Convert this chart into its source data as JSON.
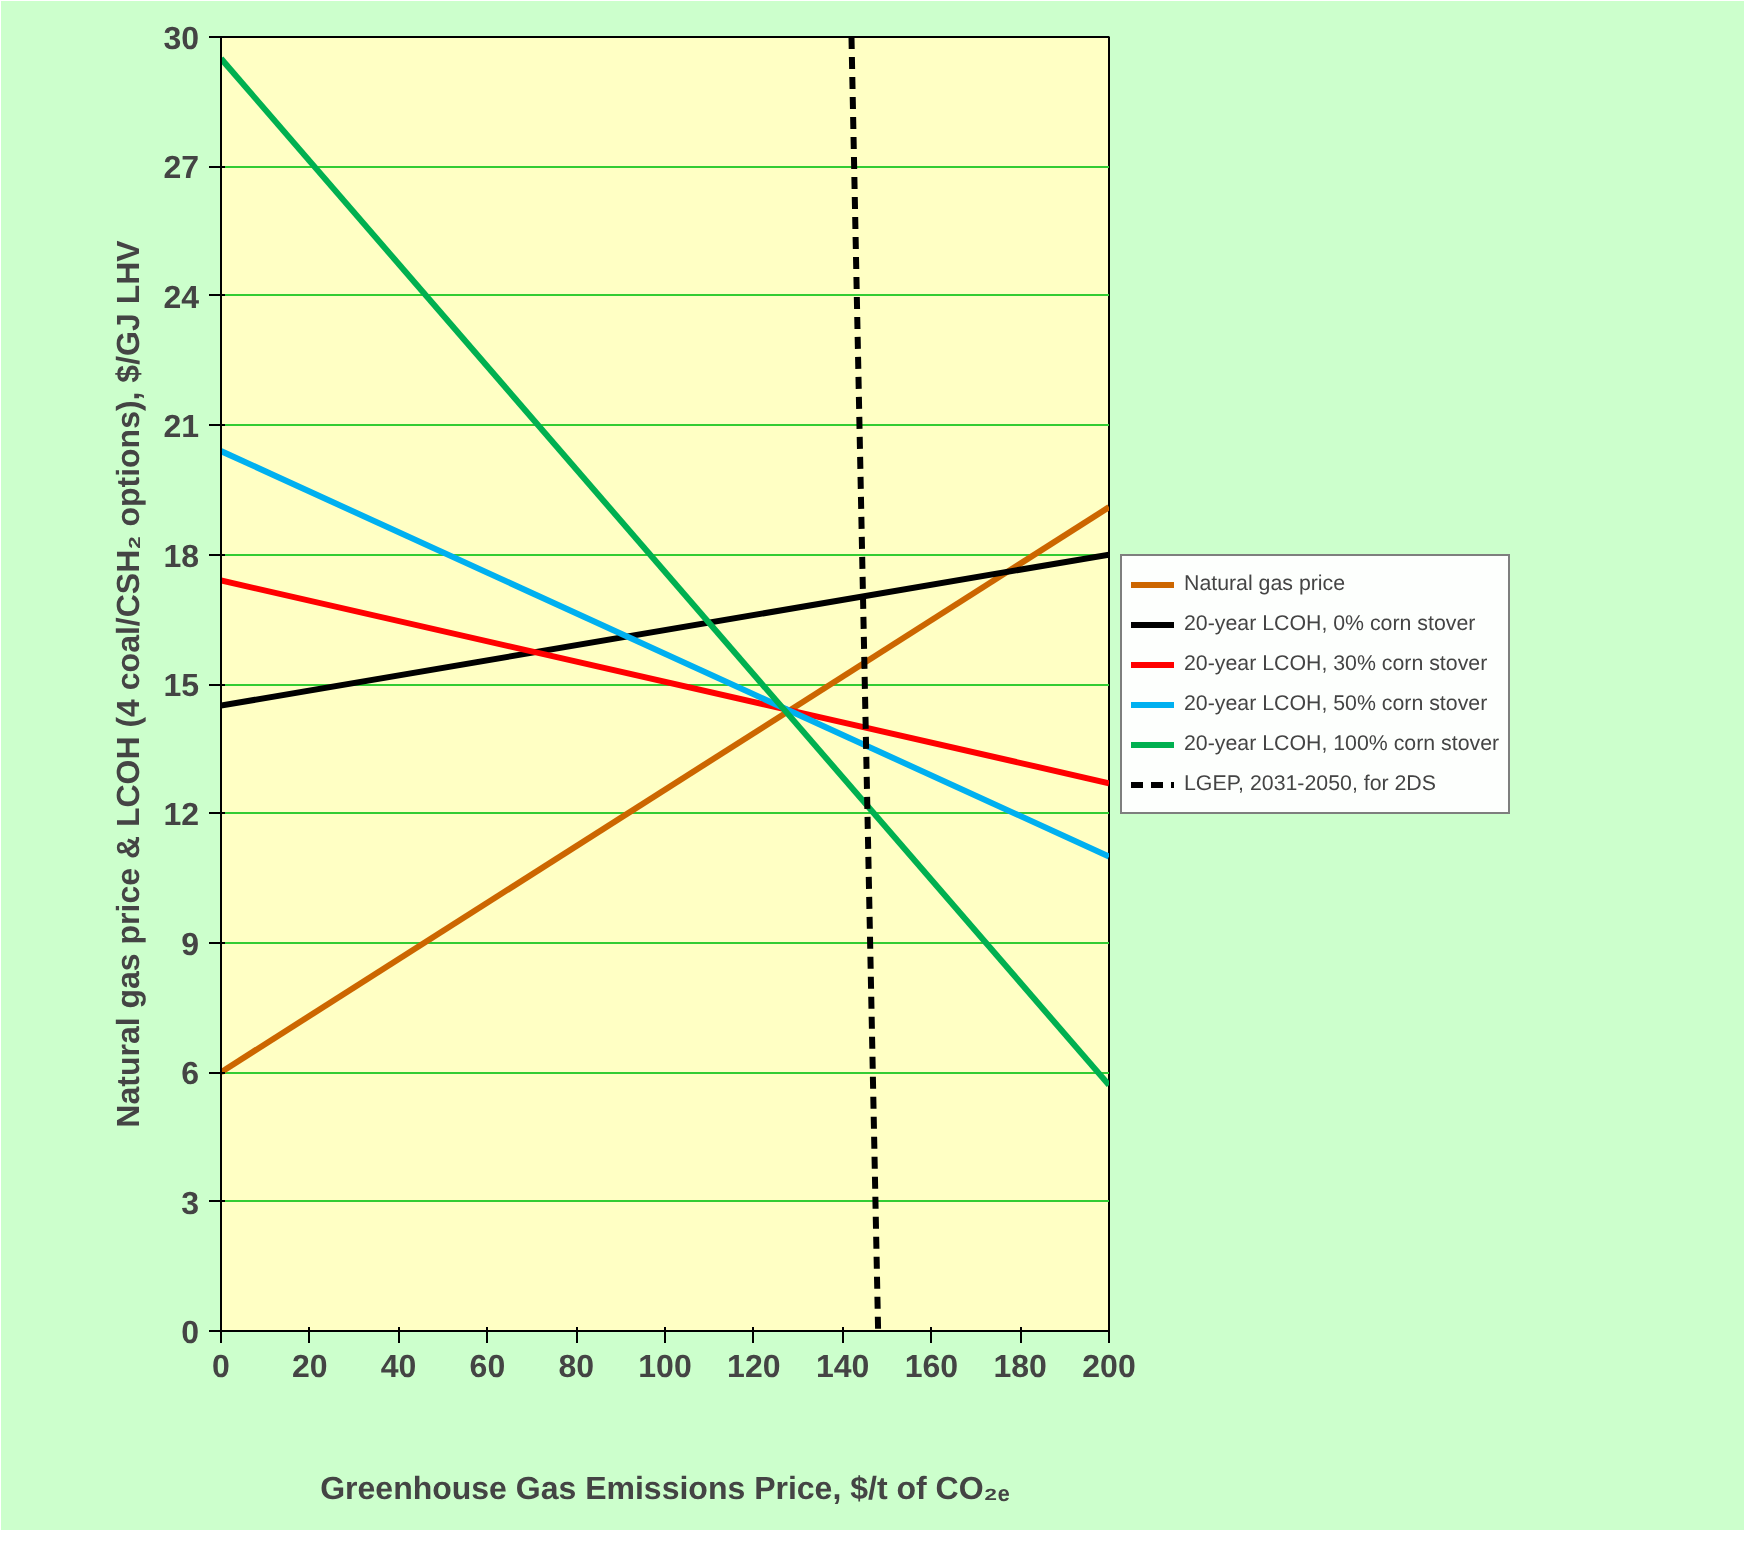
{
  "chart_data": {
    "type": "line",
    "xlabel": "Greenhouse Gas Emissions Price, $/t of CO₂ₑ",
    "ylabel": "Natural gas price & LCOH (4 coal/CSH₂ options), $/GJ LHV",
    "xlim": [
      0,
      200
    ],
    "ylim": [
      0,
      30
    ],
    "xticks": [
      0,
      20,
      40,
      60,
      80,
      100,
      120,
      140,
      160,
      180,
      200
    ],
    "yticks": [
      0,
      3,
      6,
      9,
      12,
      15,
      18,
      21,
      24,
      27,
      30
    ],
    "grid": "y",
    "legend": "right",
    "marker": "none",
    "x": [
      0,
      200
    ],
    "series": [
      {
        "name": "Natural gas price",
        "color": "#cc6600",
        "values": [
          6.0,
          19.1
        ]
      },
      {
        "name": "20-year LCOH, 0% corn stover",
        "color": "#000000",
        "values": [
          14.5,
          18.0
        ]
      },
      {
        "name": "20-year LCOH, 30% corn stover",
        "color": "#ff0000",
        "values": [
          17.4,
          12.7
        ]
      },
      {
        "name": "20-year LCOH, 50% corn stover",
        "color": "#00b0f0",
        "values": [
          20.4,
          11.0
        ]
      },
      {
        "name": "20-year LCOH, 100% corn stover",
        "color": "#00b050",
        "values": [
          29.5,
          5.7
        ]
      },
      {
        "name": "LGEP, 2031-2050, for 2DS",
        "color": "#000000",
        "x": [
          142,
          148
        ],
        "values": [
          30,
          0
        ],
        "line_style": "dashed"
      }
    ]
  }
}
